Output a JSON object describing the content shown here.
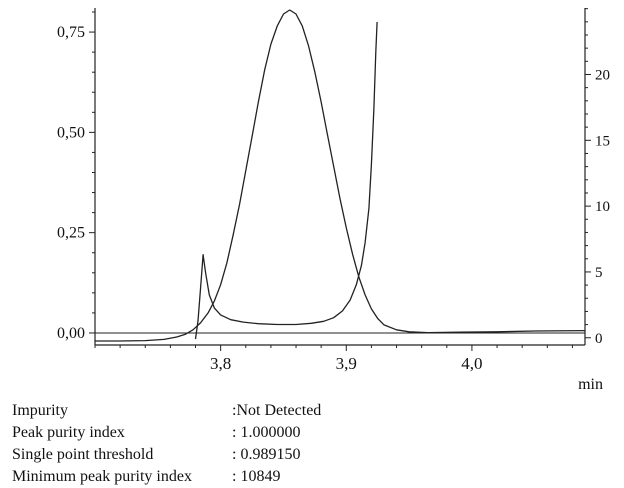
{
  "chart_data": {
    "type": "line",
    "title": "",
    "grid": false,
    "legend": "none",
    "x_axis": {
      "label": "min",
      "range": [
        3.7,
        4.09
      ],
      "major_ticks": [
        3.8,
        3.9,
        4.0
      ],
      "tick_labels": [
        "3,8",
        "3,9",
        "4,0"
      ],
      "minor_step": 0.02
    },
    "y_left": {
      "range": [
        -0.03,
        0.81
      ],
      "major_ticks": [
        0.0,
        0.25,
        0.5,
        0.75
      ],
      "tick_labels": [
        "0,00",
        "0,25",
        "0,50",
        "0,75"
      ],
      "minor_step": 0.05
    },
    "y_right": {
      "range": [
        -0.55,
        25.05
      ],
      "major_ticks": [
        0,
        5,
        10,
        15,
        20
      ],
      "tick_labels": [
        "0",
        "5",
        "10",
        "15",
        "20"
      ],
      "minor_step": 1
    },
    "series": [
      {
        "name": "zero-baseline",
        "axis": "left",
        "width": 1,
        "points": [
          [
            3.7,
            0.0
          ],
          [
            4.09,
            0.0
          ]
        ]
      },
      {
        "name": "chromatogram-peak",
        "axis": "left",
        "width": 1.3,
        "points": [
          [
            3.7,
            -0.02
          ],
          [
            3.72,
            -0.02
          ],
          [
            3.74,
            -0.019
          ],
          [
            3.755,
            -0.016
          ],
          [
            3.765,
            -0.01
          ],
          [
            3.772,
            -0.003
          ],
          [
            3.778,
            0.008
          ],
          [
            3.784,
            0.025
          ],
          [
            3.79,
            0.05
          ],
          [
            3.795,
            0.08
          ],
          [
            3.8,
            0.12
          ],
          [
            3.805,
            0.175
          ],
          [
            3.81,
            0.245
          ],
          [
            3.815,
            0.32
          ],
          [
            3.82,
            0.405
          ],
          [
            3.825,
            0.49
          ],
          [
            3.83,
            0.575
          ],
          [
            3.835,
            0.655
          ],
          [
            3.84,
            0.72
          ],
          [
            3.845,
            0.765
          ],
          [
            3.85,
            0.795
          ],
          [
            3.855,
            0.805
          ],
          [
            3.86,
            0.795
          ],
          [
            3.865,
            0.765
          ],
          [
            3.87,
            0.715
          ],
          [
            3.875,
            0.65
          ],
          [
            3.88,
            0.575
          ],
          [
            3.885,
            0.495
          ],
          [
            3.89,
            0.415
          ],
          [
            3.895,
            0.335
          ],
          [
            3.9,
            0.262
          ],
          [
            3.905,
            0.196
          ],
          [
            3.91,
            0.14
          ],
          [
            3.915,
            0.095
          ],
          [
            3.92,
            0.06
          ],
          [
            3.925,
            0.036
          ],
          [
            3.93,
            0.02
          ],
          [
            3.94,
            0.008
          ],
          [
            3.95,
            0.003
          ],
          [
            3.965,
            0.001
          ],
          [
            3.99,
            0.002
          ],
          [
            4.02,
            0.003
          ],
          [
            4.05,
            0.005
          ],
          [
            4.09,
            0.006
          ]
        ]
      },
      {
        "name": "purity-curve",
        "axis": "left",
        "width": 1.3,
        "points": [
          [
            3.78,
            -0.015
          ],
          [
            3.782,
            0.03
          ],
          [
            3.784,
            0.11
          ],
          [
            3.786,
            0.195
          ],
          [
            3.788,
            0.15
          ],
          [
            3.791,
            0.095
          ],
          [
            3.795,
            0.062
          ],
          [
            3.8,
            0.045
          ],
          [
            3.808,
            0.033
          ],
          [
            3.818,
            0.027
          ],
          [
            3.83,
            0.023
          ],
          [
            3.845,
            0.021
          ],
          [
            3.86,
            0.021
          ],
          [
            3.872,
            0.024
          ],
          [
            3.882,
            0.029
          ],
          [
            3.89,
            0.038
          ],
          [
            3.897,
            0.055
          ],
          [
            3.903,
            0.082
          ],
          [
            3.908,
            0.12
          ],
          [
            3.912,
            0.168
          ],
          [
            3.915,
            0.225
          ],
          [
            3.918,
            0.31
          ],
          [
            3.92,
            0.42
          ],
          [
            3.922,
            0.56
          ],
          [
            3.9235,
            0.7
          ],
          [
            3.9245,
            0.775
          ]
        ]
      }
    ]
  },
  "results": {
    "rows": [
      {
        "label": "Impurity",
        "value": ":Not Detected"
      },
      {
        "label": "Peak purity index",
        "value": ": 1.000000"
      },
      {
        "label": "Single point threshold",
        "value": ": 0.989150"
      },
      {
        "label": "Minimum peak purity index",
        "value": ": 10849"
      }
    ]
  }
}
